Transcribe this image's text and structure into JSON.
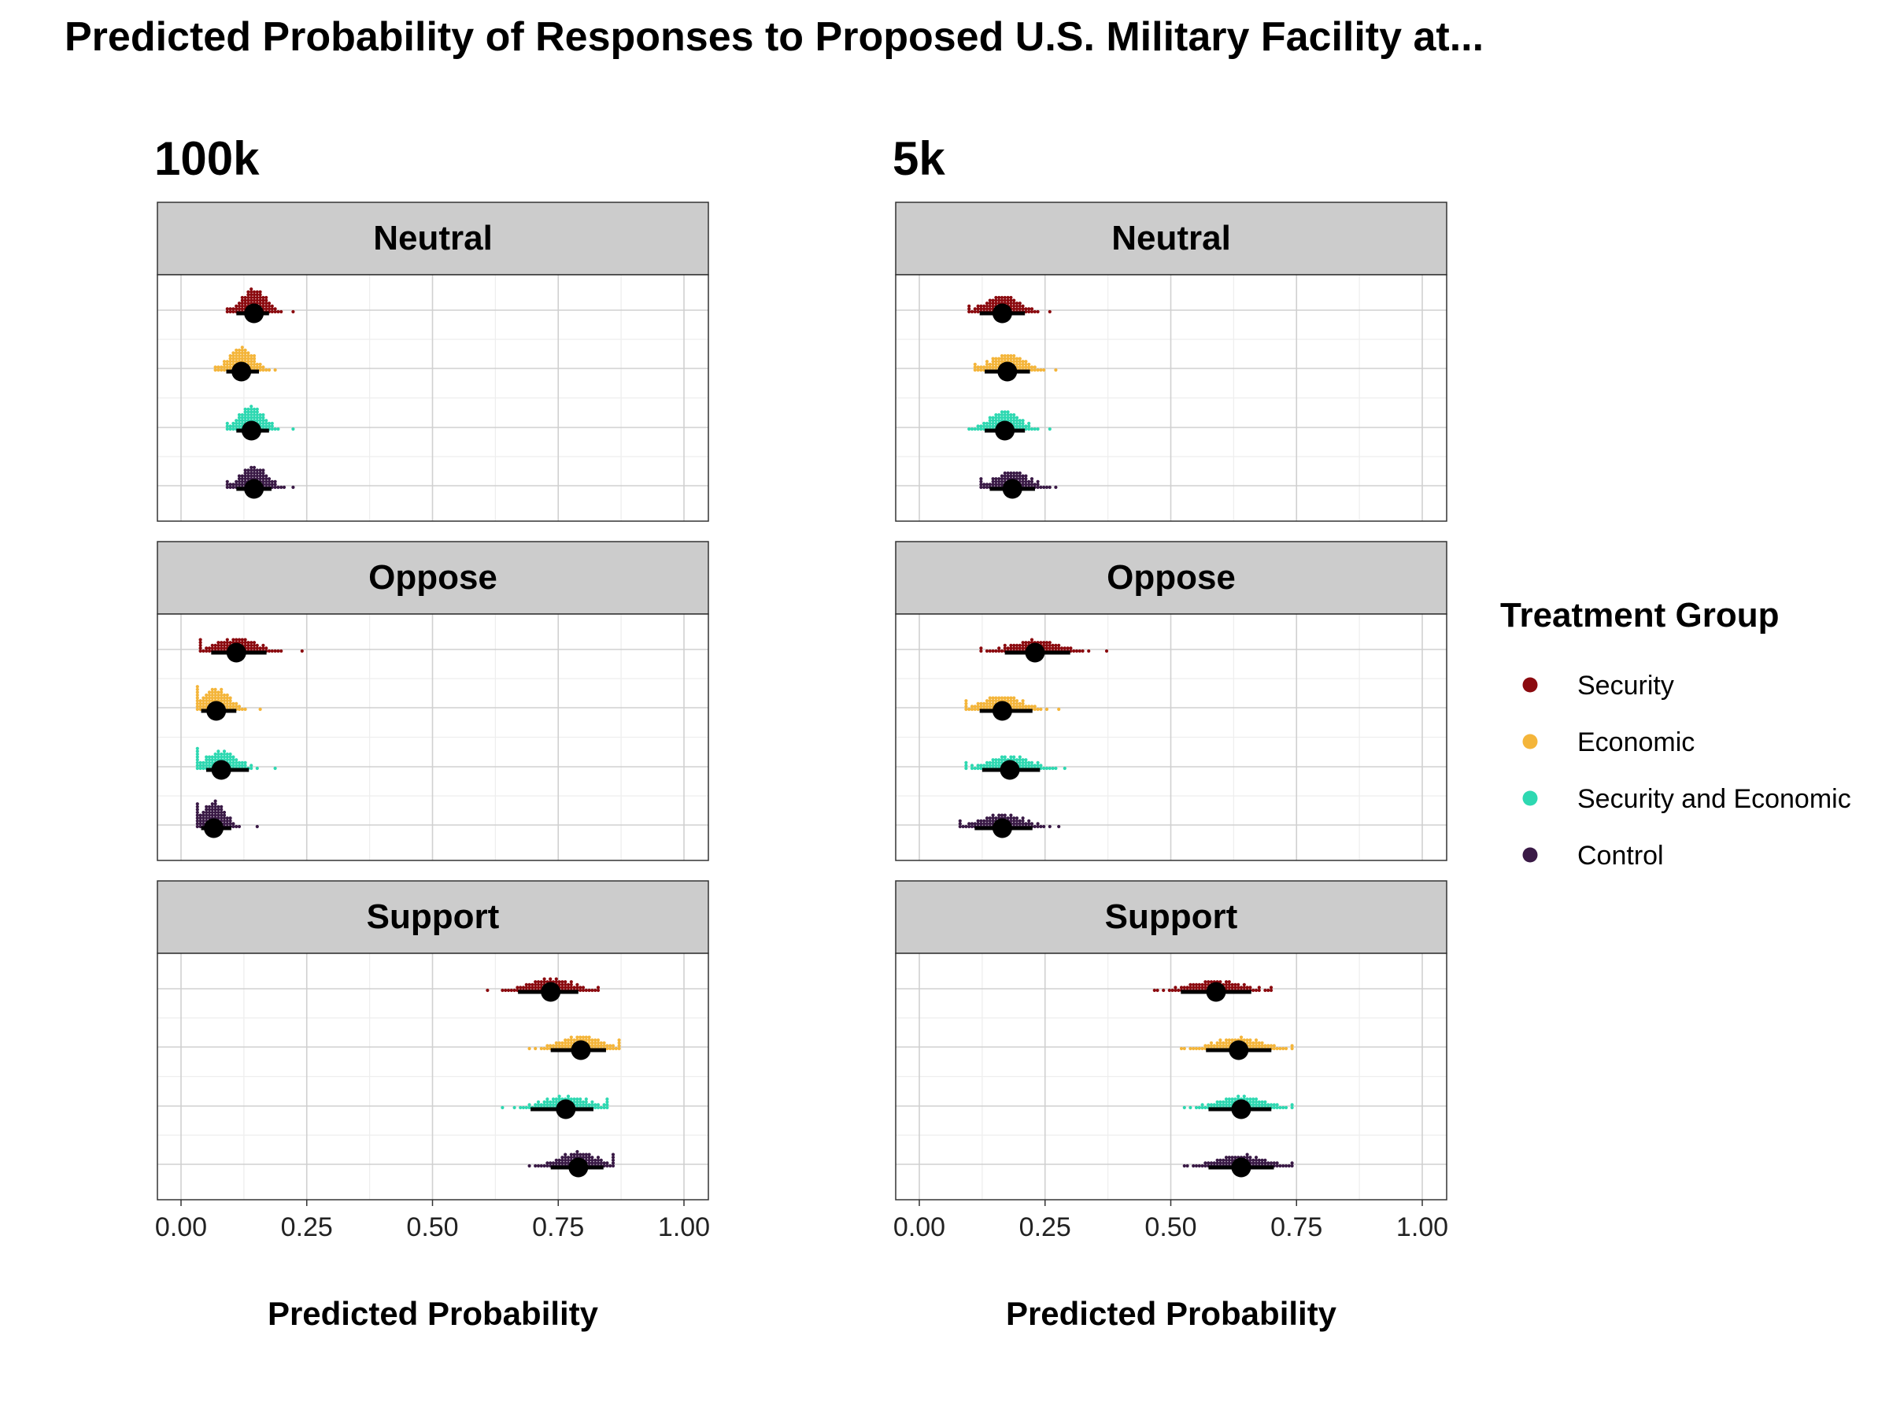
{
  "title": "Predicted Probability of Responses to Proposed U.S. Military Facility at...",
  "x_axis_label": "Predicted Probability",
  "legend": {
    "title": "Treatment Group",
    "items": [
      {
        "label": "Security",
        "color": "#8B0A0F"
      },
      {
        "label": "Economic",
        "color": "#F4B53A"
      },
      {
        "label": "Security and Economic",
        "color": "#2ED8B1"
      },
      {
        "label": "Control",
        "color": "#3A1A46"
      }
    ]
  },
  "chart_data": {
    "type": "scatter",
    "subtype": "dot-interval (quantile dotplot with point estimate and interval)",
    "xlim": [
      0,
      1
    ],
    "x_ticks": [
      "0.00",
      "0.25",
      "0.50",
      "0.75",
      "1.00"
    ],
    "grid": true,
    "legend_position": "right",
    "strip_background": "#CCCCCC",
    "series_order": [
      "Security",
      "Economic",
      "Security and Economic",
      "Control"
    ],
    "columns": [
      {
        "title": "100k",
        "panels": [
          {
            "facet": "Neutral",
            "groups": [
              {
                "name": "Security",
                "estimate": 0.145,
                "lower": 0.11,
                "upper": 0.175,
                "min": 0.09,
                "max": 0.22
              },
              {
                "name": "Economic",
                "estimate": 0.12,
                "lower": 0.09,
                "upper": 0.155,
                "min": 0.07,
                "max": 0.19
              },
              {
                "name": "Security and Economic",
                "estimate": 0.14,
                "lower": 0.11,
                "upper": 0.175,
                "min": 0.09,
                "max": 0.22
              },
              {
                "name": "Control",
                "estimate": 0.145,
                "lower": 0.11,
                "upper": 0.18,
                "min": 0.09,
                "max": 0.22
              }
            ]
          },
          {
            "facet": "Oppose",
            "groups": [
              {
                "name": "Security",
                "estimate": 0.11,
                "lower": 0.06,
                "upper": 0.17,
                "min": 0.04,
                "max": 0.24
              },
              {
                "name": "Economic",
                "estimate": 0.07,
                "lower": 0.04,
                "upper": 0.11,
                "min": 0.03,
                "max": 0.16
              },
              {
                "name": "Security and Economic",
                "estimate": 0.08,
                "lower": 0.05,
                "upper": 0.135,
                "min": 0.03,
                "max": 0.19
              },
              {
                "name": "Control",
                "estimate": 0.065,
                "lower": 0.04,
                "upper": 0.1,
                "min": 0.03,
                "max": 0.15
              }
            ]
          },
          {
            "facet": "Support",
            "groups": [
              {
                "name": "Security",
                "estimate": 0.735,
                "lower": 0.67,
                "upper": 0.79,
                "min": 0.61,
                "max": 0.83
              },
              {
                "name": "Economic",
                "estimate": 0.795,
                "lower": 0.735,
                "upper": 0.845,
                "min": 0.69,
                "max": 0.87
              },
              {
                "name": "Security and Economic",
                "estimate": 0.765,
                "lower": 0.695,
                "upper": 0.82,
                "min": 0.64,
                "max": 0.85
              },
              {
                "name": "Control",
                "estimate": 0.79,
                "lower": 0.735,
                "upper": 0.84,
                "min": 0.69,
                "max": 0.86
              }
            ]
          }
        ]
      },
      {
        "title": "5k",
        "panels": [
          {
            "facet": "Neutral",
            "groups": [
              {
                "name": "Security",
                "estimate": 0.165,
                "lower": 0.12,
                "upper": 0.21,
                "min": 0.1,
                "max": 0.26
              },
              {
                "name": "Economic",
                "estimate": 0.175,
                "lower": 0.13,
                "upper": 0.22,
                "min": 0.11,
                "max": 0.27
              },
              {
                "name": "Security and Economic",
                "estimate": 0.17,
                "lower": 0.13,
                "upper": 0.21,
                "min": 0.1,
                "max": 0.26
              },
              {
                "name": "Control",
                "estimate": 0.185,
                "lower": 0.14,
                "upper": 0.23,
                "min": 0.12,
                "max": 0.27
              }
            ]
          },
          {
            "facet": "Oppose",
            "groups": [
              {
                "name": "Security",
                "estimate": 0.23,
                "lower": 0.17,
                "upper": 0.3,
                "min": 0.12,
                "max": 0.37
              },
              {
                "name": "Economic",
                "estimate": 0.165,
                "lower": 0.12,
                "upper": 0.225,
                "min": 0.09,
                "max": 0.28
              },
              {
                "name": "Security and Economic",
                "estimate": 0.18,
                "lower": 0.125,
                "upper": 0.24,
                "min": 0.09,
                "max": 0.29
              },
              {
                "name": "Control",
                "estimate": 0.165,
                "lower": 0.11,
                "upper": 0.225,
                "min": 0.08,
                "max": 0.28
              }
            ]
          },
          {
            "facet": "Support",
            "groups": [
              {
                "name": "Security",
                "estimate": 0.59,
                "lower": 0.52,
                "upper": 0.66,
                "min": 0.47,
                "max": 0.7
              },
              {
                "name": "Economic",
                "estimate": 0.635,
                "lower": 0.57,
                "upper": 0.7,
                "min": 0.52,
                "max": 0.74
              },
              {
                "name": "Security and Economic",
                "estimate": 0.64,
                "lower": 0.575,
                "upper": 0.7,
                "min": 0.53,
                "max": 0.74
              },
              {
                "name": "Control",
                "estimate": 0.64,
                "lower": 0.575,
                "upper": 0.705,
                "min": 0.53,
                "max": 0.74
              }
            ]
          }
        ]
      }
    ]
  }
}
